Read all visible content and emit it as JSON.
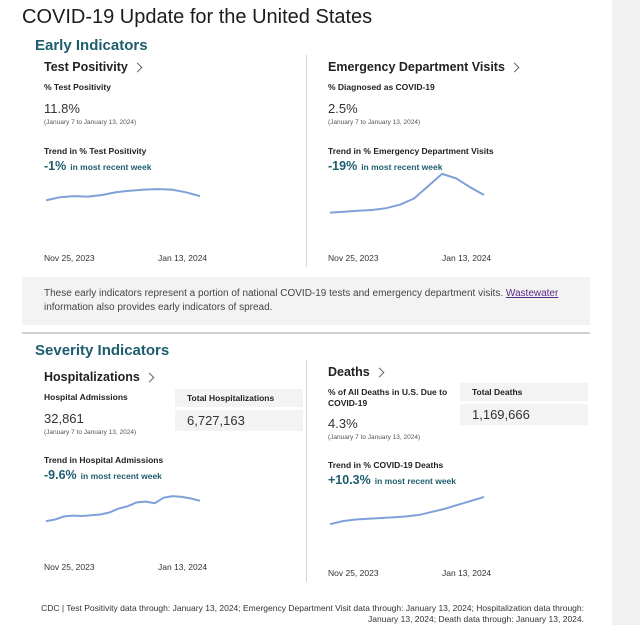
{
  "page_title": "COVID-19 Update for the United States",
  "early": {
    "section_title": "Early Indicators",
    "test_positivity": {
      "title": "Test Positivity",
      "metric_label": "% Test Positivity",
      "value": "11.8%",
      "range": "(January 7 to January 13, 2024)",
      "trend_label": "Trend in % Test Positivity",
      "trend_value": "-1%",
      "trend_suffix": "in most recent week",
      "axis_start": "Nov 25, 2023",
      "axis_end": "Jan 13, 2024"
    },
    "ed_visits": {
      "title": "Emergency Department Visits",
      "metric_label": "% Diagnosed as COVID-19",
      "value": "2.5%",
      "range": "(January 7 to January 13, 2024)",
      "trend_label": "Trend in % Emergency Department Visits",
      "trend_value": "-19%",
      "trend_suffix": "in most recent week",
      "axis_start": "Nov 25, 2023",
      "axis_end": "Jan 13, 2024"
    },
    "note_text": "These early indicators represent a portion of national COVID-19 tests and emergency department visits. ",
    "note_link": "Wastewater",
    "note_text_after": " information also provides early indicators of spread."
  },
  "severity": {
    "section_title": "Severity Indicators",
    "hospitalizations": {
      "title": "Hospitalizations",
      "metric_label": "Hospital Admissions",
      "value": "32,861",
      "range": "(January 7 to January 13, 2024)",
      "total_label": "Total Hospitalizations",
      "total_value": "6,727,163",
      "trend_label": "Trend in Hospital Admissions",
      "trend_value": "-9.6%",
      "trend_suffix": "in most recent week",
      "axis_start": "Nov 25, 2023",
      "axis_end": "Jan 13, 2024"
    },
    "deaths": {
      "title": "Deaths",
      "metric_label": "% of All Deaths in U.S. Due to COVID-19",
      "value": "4.3%",
      "range": "(January 7 to January 13, 2024)",
      "total_label": "Total Deaths",
      "total_value": "1,169,666",
      "trend_label": "Trend in % COVID-19 Deaths",
      "trend_value": "+10.3%",
      "trend_suffix": "in most recent week",
      "axis_start": "Nov 25, 2023",
      "axis_end": "Jan 13, 2024"
    }
  },
  "footer": "CDC | Test Positivity data through: January 13, 2024; Emergency Department Visit data through: January 13, 2024; Hospitalization data through: January 13, 2024; Death data through: January 13, 2024.",
  "colors": {
    "accent": "#1e5d6e",
    "spark": "#7ea1d8",
    "link": "#5b2a86"
  },
  "icons": {
    "card_link": "chevron-right-icon"
  },
  "sparklines": {
    "test_positivity": [
      0.4,
      0.46,
      0.48,
      0.47,
      0.5,
      0.55,
      0.58,
      0.6,
      0.61,
      0.6,
      0.55,
      0.48
    ],
    "ed_visits": [
      0.1,
      0.12,
      0.14,
      0.16,
      0.2,
      0.28,
      0.42,
      0.7,
      0.98,
      0.88,
      0.68,
      0.5
    ],
    "hospitalizations": [
      0.1,
      0.14,
      0.22,
      0.24,
      0.23,
      0.25,
      0.27,
      0.32,
      0.42,
      0.48,
      0.58,
      0.6,
      0.56,
      0.7,
      0.74,
      0.72,
      0.68,
      0.62
    ],
    "deaths": [
      0.2,
      0.28,
      0.32,
      0.34,
      0.36,
      0.38,
      0.4,
      0.44,
      0.52,
      0.6,
      0.7,
      0.8,
      0.9
    ]
  }
}
